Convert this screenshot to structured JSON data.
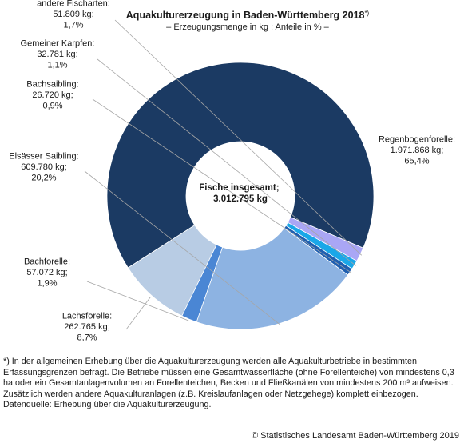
{
  "chart_data": {
    "type": "pie",
    "variant": "donut",
    "title": "Aquakulturerzeugung in Baden-Württemberg 2018",
    "title_marker": "*)",
    "subtitle": "– Erzeugungsmenge in kg ; Anteile in % –",
    "center_label": [
      "Fische insgesamt;",
      "3.012.795 kg"
    ],
    "total_kg": 3012795,
    "slices": [
      {
        "name": "Regenbogenforelle",
        "value_kg": 1971868,
        "value_label": "1.971.868 kg;",
        "share_label": "65,4%",
        "share": 65.4,
        "color": "#1b3a63"
      },
      {
        "name": "Lachsforelle",
        "value_kg": 262765,
        "value_label": "262.765 kg;",
        "share_label": "8,7%",
        "share": 8.7,
        "color": "#b8cce4"
      },
      {
        "name": "Bachforelle",
        "value_kg": 57072,
        "value_label": "57.072 kg;",
        "share_label": "1,9%",
        "share": 1.9,
        "color": "#4a86d4"
      },
      {
        "name": "Elsässer Saibling",
        "value_kg": 609780,
        "value_label": "609.780 kg;",
        "share_label": "20,2%",
        "share": 20.2,
        "color": "#8db3e2"
      },
      {
        "name": "Bachsaibling",
        "value_kg": 26720,
        "value_label": "26.720 kg;",
        "share_label": "0,9%",
        "share": 0.9,
        "color": "#1f5fb0"
      },
      {
        "name": "Gemeiner Karpfen",
        "value_kg": 32781,
        "value_label": "32.781 kg;",
        "share_label": "1,1%",
        "share": 1.1,
        "color": "#1aa7e8"
      },
      {
        "name": "andere Fischarten",
        "value_kg": 51809,
        "value_label": "51.809 kg;",
        "share_label": "1,7%",
        "share": 1.7,
        "color": "#a9a6f5"
      }
    ]
  },
  "footnote": {
    "text": "*) In der allgemeinen Erhebung über die Aquakulturerzeugung werden alle Aquakulturbetriebe in bestimmten Erfassungsgrenzen befragt. Die Betriebe müssen eine Gesamtwasserfläche (ohne Forellenteiche) von mindestens 0,3 ha oder ein Gesamtanlagenvolumen an Forellenteichen, Becken und Fließkanälen von mindestens 200 m³ aufweisen. Zusätzlich werden andere Aquakulturanlagen (z.B. Kreislaufanlagen oder Netzgehege) komplett einbezogen.",
    "source": "Datenquelle: Erhebung über die Aquakulturerzeugung."
  },
  "copyright": "© Statistisches Landesamt Baden-Württemberg 2019"
}
